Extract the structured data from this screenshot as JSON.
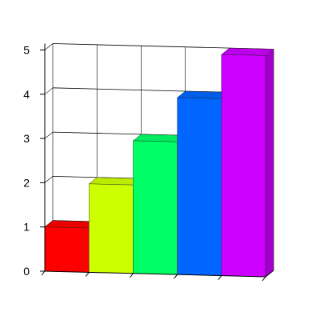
{
  "chart_data": {
    "type": "bar",
    "style": "3d",
    "categories": [
      "",
      "",
      "",
      "",
      ""
    ],
    "values": [
      1,
      2,
      3,
      4,
      5
    ],
    "colors": [
      "#ff0000",
      "#ccff00",
      "#00ff66",
      "#0066ff",
      "#cc00ff"
    ],
    "ylim": [
      0,
      5
    ],
    "yticks": [
      "0",
      "1",
      "2",
      "3",
      "4",
      "5"
    ],
    "grid": true,
    "title": "",
    "xlabel": "",
    "ylabel": ""
  }
}
